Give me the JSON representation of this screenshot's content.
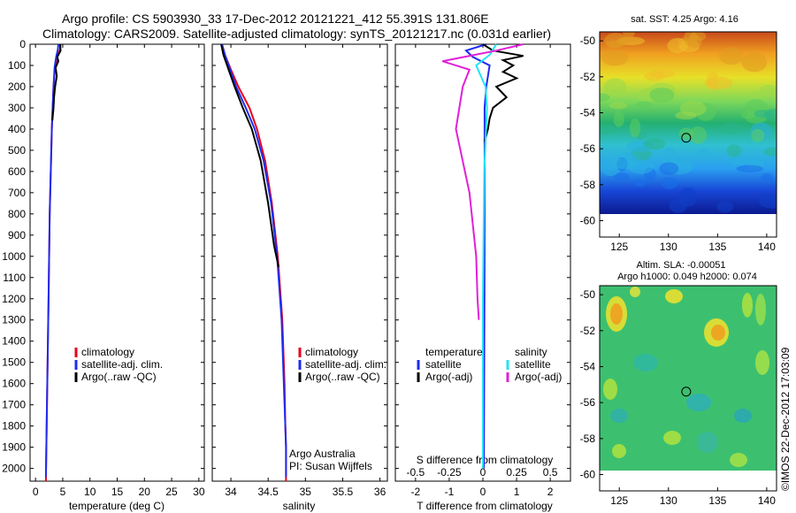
{
  "header": {
    "line1": "Argo profile: CS 5903930_33 17-Dec-2012 20121221_412 55.391S 131.806E",
    "line2": "Climatology: CARS2009. Satellite-adjusted climatology: synTS_20121217.nc (0.031d earlier)"
  },
  "footer_stamp": "©IMOS 22-Dec-2012 17:03:09",
  "colors": {
    "red": "#e8001c",
    "blue": "#1e2cf0",
    "black": "#000000",
    "cyan": "#22e4f4",
    "magenta": "#e020d8"
  },
  "chart_data": [
    {
      "type": "line",
      "panel": "temperature",
      "xlabel": "temperature (deg C)",
      "xlim": [
        -1,
        31
      ],
      "xticks": [
        0,
        5,
        10,
        15,
        20,
        25,
        30
      ],
      "ylim": [
        2060,
        0
      ],
      "yticks": [
        0,
        100,
        200,
        300,
        400,
        500,
        600,
        700,
        800,
        900,
        1000,
        1100,
        1200,
        1300,
        1400,
        1500,
        1600,
        1700,
        1800,
        1900,
        2000
      ],
      "legend": [
        "climatology",
        "satellite-adj. clim.",
        "Argo(..raw -QC)"
      ],
      "series": [
        {
          "name": "climatology",
          "color": "red",
          "x": [
            4.6,
            4.5,
            4.0,
            3.6,
            3.3,
            3.0,
            2.6,
            2.4,
            2.1,
            1.9
          ],
          "y": [
            0,
            25,
            60,
            110,
            200,
            400,
            800,
            1200,
            1700,
            2060
          ]
        },
        {
          "name": "satellite-adj. clim.",
          "color": "blue",
          "x": [
            4.2,
            4.1,
            3.8,
            3.5,
            3.3,
            3.0,
            2.6,
            2.4,
            2.1,
            1.9
          ],
          "y": [
            0,
            25,
            60,
            110,
            200,
            400,
            800,
            1200,
            1700,
            2040
          ]
        },
        {
          "name": "Argo(..raw -QC)",
          "color": "black",
          "x": [
            4.5,
            4.6,
            4.0,
            4.2,
            3.7,
            3.9,
            3.6,
            3.4,
            3.3,
            3.1
          ],
          "y": [
            0,
            30,
            60,
            80,
            110,
            150,
            200,
            250,
            300,
            360
          ]
        }
      ]
    },
    {
      "type": "line",
      "panel": "salinity",
      "xlabel": "salinity",
      "xlim": [
        33.75,
        36.1
      ],
      "xticks": [
        34,
        34.5,
        35,
        35.5,
        36
      ],
      "ylim": [
        2060,
        0
      ],
      "legend": [
        "climatology",
        "satellite-adj. clim.",
        "Argo(..raw -QC)"
      ],
      "annotation": [
        "Argo Australia",
        "PI: Susan Wijffels"
      ],
      "series": [
        {
          "name": "climatology",
          "color": "red",
          "x": [
            33.88,
            33.92,
            34.0,
            34.1,
            34.25,
            34.35,
            34.46,
            34.55,
            34.63,
            34.69,
            34.72,
            34.73,
            34.74,
            34.74
          ],
          "y": [
            0,
            50,
            120,
            200,
            300,
            400,
            550,
            750,
            1000,
            1300,
            1600,
            1800,
            1900,
            2060
          ]
        },
        {
          "name": "satellite-adj. clim.",
          "color": "blue",
          "x": [
            33.88,
            33.92,
            33.99,
            34.07,
            34.2,
            34.32,
            34.44,
            34.54,
            34.62,
            34.68,
            34.71,
            34.73,
            34.74,
            34.74
          ],
          "y": [
            0,
            50,
            120,
            200,
            300,
            400,
            550,
            750,
            1000,
            1300,
            1600,
            1800,
            1900,
            2040
          ]
        },
        {
          "name": "Argo(..raw -QC)",
          "color": "black",
          "x": [
            33.87,
            33.9,
            33.97,
            34.05,
            34.16,
            34.28,
            34.4,
            34.5,
            34.58,
            34.64
          ],
          "y": [
            0,
            50,
            120,
            200,
            300,
            400,
            550,
            750,
            950,
            1050
          ]
        }
      ]
    },
    {
      "type": "line",
      "panel": "difference",
      "xlabel": "T difference from climatology",
      "xlabel_top": "S difference from climatology",
      "xlim": [
        -2.6,
        2.6
      ],
      "xticks": [
        -2,
        -1,
        0,
        1,
        2
      ],
      "xticks_S": [
        -0.5,
        -0.25,
        0,
        0.25,
        0.5
      ],
      "ylim": [
        2060,
        0
      ],
      "legend_title_T": "temperature",
      "legend_title_S": "salinity",
      "legend_T": [
        "satellite",
        "Argo(-adj)"
      ],
      "legend_S": [
        "satellite",
        "Argo(-adj)"
      ],
      "series": [
        {
          "name": "T satellite",
          "color": "blue",
          "x": [
            0.1,
            -0.5,
            -0.3,
            0.2,
            0.1,
            0.05,
            0.05,
            0.05,
            0.04,
            0.03
          ],
          "y": [
            0,
            30,
            60,
            100,
            200,
            300,
            500,
            1000,
            1500,
            2000
          ]
        },
        {
          "name": "T Argo(-adj)",
          "color": "black",
          "x": [
            0.0,
            0.3,
            1.2,
            0.6,
            0.9,
            0.6,
            1.0,
            0.4,
            0.7,
            0.3,
            0.2,
            0.15,
            0.05
          ],
          "y": [
            0,
            30,
            55,
            75,
            100,
            130,
            160,
            200,
            250,
            300,
            350,
            400,
            460
          ]
        },
        {
          "name": "S satellite",
          "color": "cyan",
          "x": [
            0.1,
            0.05,
            -0.05,
            0.02,
            0.03,
            0.01,
            0.0,
            0.0
          ],
          "y": [
            0,
            50,
            100,
            200,
            300,
            600,
            1200,
            2000
          ]
        },
        {
          "name": "S Argo(-adj)",
          "color": "magenta",
          "x": [
            0.3,
            0.1,
            -0.3,
            -0.1,
            -0.15,
            -0.2,
            -0.1,
            -0.05,
            -0.04,
            -0.03
          ],
          "y": [
            0,
            30,
            80,
            120,
            200,
            400,
            700,
            1000,
            1200,
            1300
          ]
        }
      ]
    },
    {
      "type": "heatmap",
      "panel": "sst-map",
      "title": "sat. SST: 4.25 Argo: 4.16",
      "xlim": [
        123,
        141
      ],
      "ylim": [
        -61.5,
        -49.5
      ],
      "xticks": [
        125,
        130,
        135,
        140
      ],
      "yticks": [
        -50,
        -52,
        -54,
        -56,
        -58,
        -60
      ],
      "marker": {
        "lon": 131.806,
        "lat": -55.391
      }
    },
    {
      "type": "heatmap",
      "panel": "sla-map",
      "title_line1": "Altim. SLA: -0.00051",
      "title_line2": "Argo h1000: 0.049 h2000: 0.074",
      "xlim": [
        123,
        141
      ],
      "ylim": [
        -61.5,
        -49.5
      ],
      "xticks": [
        125,
        130,
        135,
        140
      ],
      "yticks": [
        -50,
        -52,
        -54,
        -56,
        -58,
        -60
      ],
      "marker": {
        "lon": 131.806,
        "lat": -55.391
      }
    }
  ]
}
